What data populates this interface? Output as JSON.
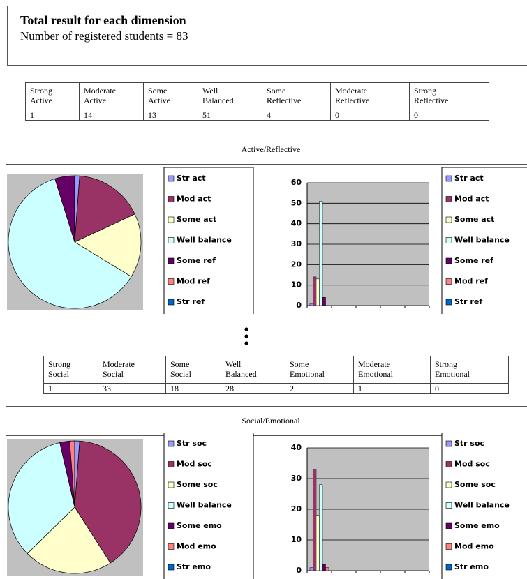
{
  "header": {
    "title": "Total result for each dimension",
    "subtitle": "Number of registered students = 83"
  },
  "sections": [
    {
      "columns": [
        "Strong Active",
        "Moderate Active",
        "Some Active",
        "Well Balanced",
        "Some Reflective",
        "Moderate Reflective",
        "Strong Reflective"
      ],
      "values": [
        1,
        14,
        13,
        51,
        4,
        0,
        0
      ],
      "label": "Active/Reflective",
      "legend": [
        "Str act",
        "Mod act",
        "Some act",
        "Well balance",
        "Some ref",
        "Mod ref",
        "Str ref"
      ],
      "colors": [
        "#9999ff",
        "#993366",
        "#ffffcc",
        "#ccffff",
        "#660066",
        "#ff8080",
        "#0066cc"
      ],
      "ylim": [
        0,
        60
      ],
      "yticks": [
        0,
        10,
        20,
        30,
        40,
        50,
        60
      ]
    },
    {
      "columns": [
        "Strong Social",
        "Moderate Social",
        "Some Social",
        "Well Balanced",
        "Some Emotional",
        "Moderate Emotional",
        "Strong Emotional"
      ],
      "values": [
        1,
        33,
        18,
        28,
        2,
        1,
        0
      ],
      "label": "Social/Emotional",
      "legend": [
        "Str soc",
        "Mod soc",
        "Some soc",
        "Well balance",
        "Some emo",
        "Mod emo",
        "Str emo"
      ],
      "colors": [
        "#9999ff",
        "#993366",
        "#ffffcc",
        "#ccffff",
        "#660066",
        "#ff8080",
        "#0066cc"
      ],
      "ylim": [
        0,
        40
      ],
      "yticks": [
        0,
        10,
        20,
        30,
        40
      ]
    }
  ]
}
